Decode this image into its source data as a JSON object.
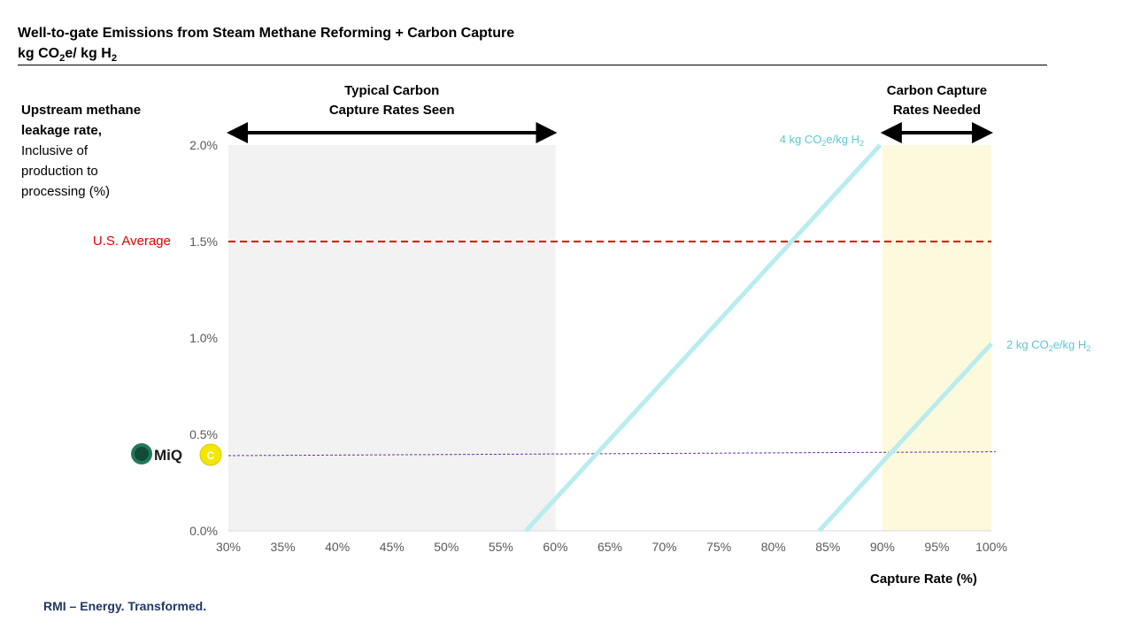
{
  "title": {
    "line1": "Well-to-gate Emissions from Steam Methane Reforming + Carbon Capture",
    "line2_pre": "kg CO",
    "line2_sub1": "2",
    "line2_mid": "e/ kg H",
    "line2_sub2": "2"
  },
  "ylabel": {
    "bold1": "Upstream methane",
    "bold2": "leakage rate,",
    "rest1": "Inclusive of",
    "rest2": "production to",
    "rest3": "processing (%)"
  },
  "footer": "RMI – Energy. Transformed.",
  "logo": {
    "text": "MiQ",
    "badge": "C"
  },
  "chart_data": {
    "type": "line",
    "xlabel": "Capture Rate (%)",
    "xlim": [
      30,
      100
    ],
    "ylim": [
      0,
      2.0
    ],
    "x_ticks": [
      30,
      35,
      40,
      45,
      50,
      55,
      60,
      65,
      70,
      75,
      80,
      85,
      90,
      95,
      100
    ],
    "x_tick_labels": [
      "30%",
      "35%",
      "40%",
      "45%",
      "50%",
      "55%",
      "60%",
      "65%",
      "70%",
      "75%",
      "80%",
      "85%",
      "90%",
      "95%",
      "100%"
    ],
    "y_ticks": [
      0,
      0.5,
      1.0,
      1.5,
      2.0
    ],
    "y_tick_labels": [
      "0.0%",
      "0.5%",
      "1.0%",
      "1.5%",
      "2.0%"
    ],
    "series": [
      {
        "name": "4 kg CO2e/kg H2",
        "label_pre": "4 kg CO",
        "label_sub": "2",
        "label_mid": "e/kg H",
        "label_sub2": "2",
        "x": [
          57.3,
          89.8
        ],
        "y": [
          0,
          2.0
        ],
        "color": "#b9ecef"
      },
      {
        "name": "2 kg CO2e/kg H2",
        "label_pre": "2 kg CO",
        "label_sub": "2",
        "label_mid": "e/kg H",
        "label_sub2": "2",
        "x": [
          84.2,
          100
        ],
        "y": [
          0,
          0.97
        ],
        "color": "#b9ecef"
      }
    ],
    "reference_lines": [
      {
        "label": "U.S. Average",
        "y": 1.5,
        "color": "#e00000",
        "style": "dashed"
      },
      {
        "label": "MiQ",
        "y": 0.39,
        "y_end": 0.41,
        "color": "#7030a0",
        "style": "dotted"
      }
    ],
    "bands": [
      {
        "label_line1": "Typical Carbon",
        "label_line2": "Capture Rates Seen",
        "x_start": 30,
        "x_end": 60,
        "color": "#f2f2f2"
      },
      {
        "label_line1": "Carbon Capture",
        "label_line2": "Rates Needed",
        "x_start": 90,
        "x_end": 100,
        "color": "#fdf9dc"
      }
    ],
    "grid": false
  }
}
